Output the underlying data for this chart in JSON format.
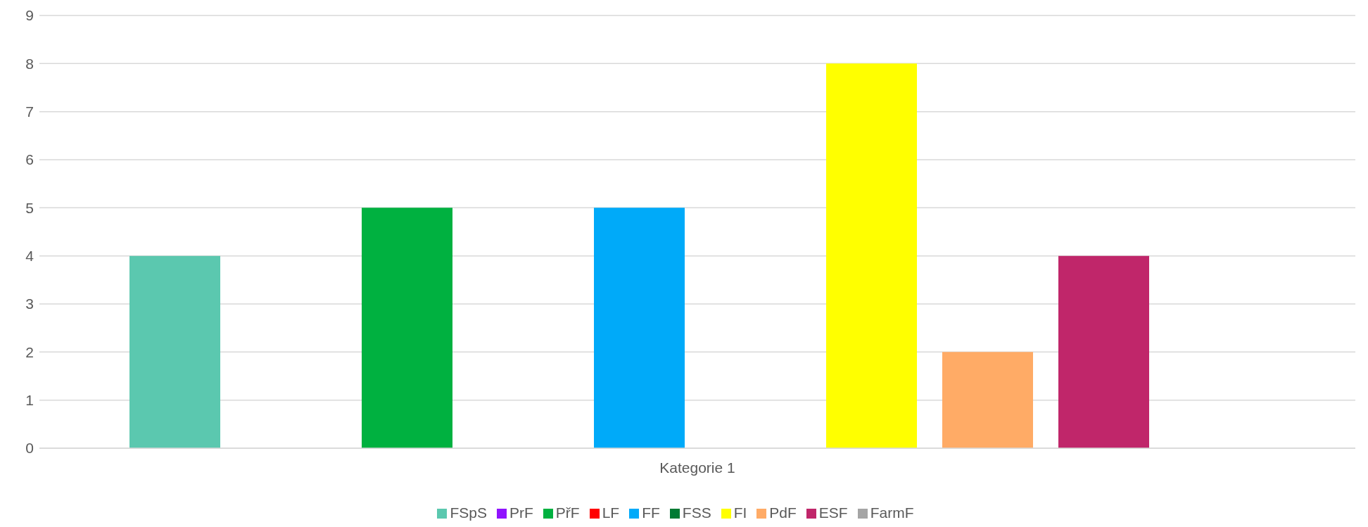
{
  "chart_data": {
    "type": "bar",
    "categories": [
      "Kategorie 1"
    ],
    "series": [
      {
        "name": "FSpS",
        "color": "#5bc8af",
        "values": [
          4
        ]
      },
      {
        "name": "PrF",
        "color": "#9013fe",
        "values": [
          null
        ]
      },
      {
        "name": "PřF",
        "color": "#00b140",
        "values": [
          5
        ]
      },
      {
        "name": "LF",
        "color": "#ff0000",
        "values": [
          null
        ]
      },
      {
        "name": "FF",
        "color": "#00aaf9",
        "values": [
          5
        ]
      },
      {
        "name": "FSS",
        "color": "#007a33",
        "values": [
          null
        ]
      },
      {
        "name": "FI",
        "color": "#ffff00",
        "values": [
          8
        ]
      },
      {
        "name": "PdF",
        "color": "#ffab66",
        "values": [
          2
        ]
      },
      {
        "name": "ESF",
        "color": "#c0266a",
        "values": [
          4
        ]
      },
      {
        "name": "FarmF",
        "color": "#a5a5a5",
        "values": [
          null
        ]
      }
    ],
    "ylim": [
      0,
      9
    ],
    "yticks": [
      0,
      1,
      2,
      3,
      4,
      5,
      6,
      7,
      8,
      9
    ],
    "grid": "y",
    "legend": "bottom"
  }
}
